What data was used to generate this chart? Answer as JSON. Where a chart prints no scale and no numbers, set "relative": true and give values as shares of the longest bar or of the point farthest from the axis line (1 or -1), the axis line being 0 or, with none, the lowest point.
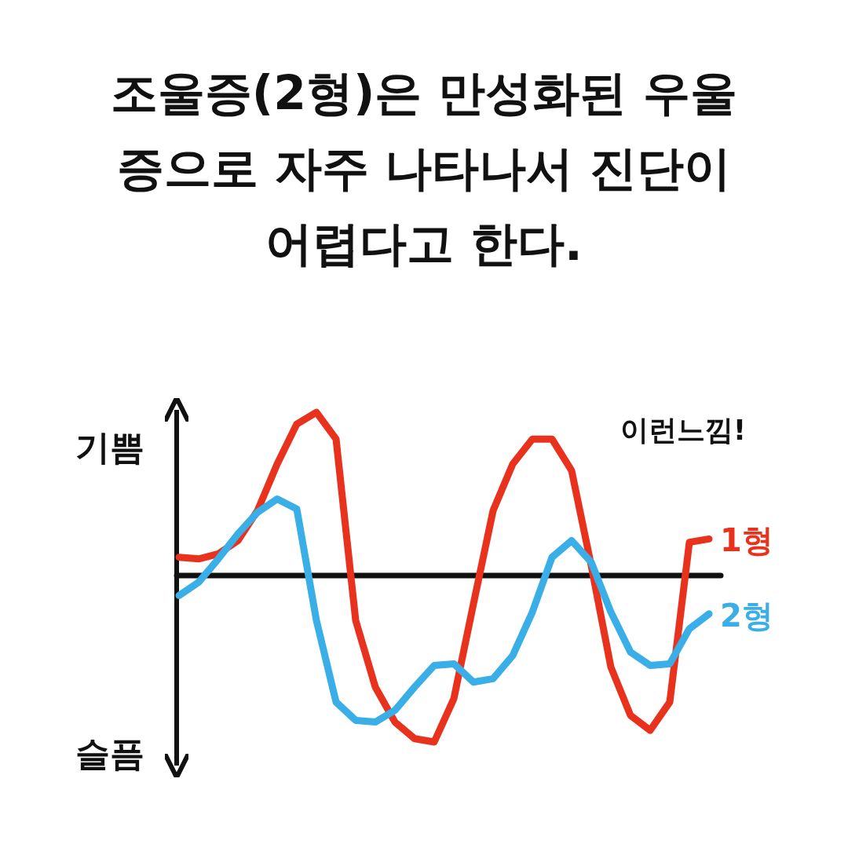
{
  "chart_data": {
    "type": "line",
    "title": "조울증(2형)은 만성화된 우울증으로 자주 나타나서 진단이 어렵다고 한다.",
    "relative": true,
    "categories": [
      null,
      null,
      null,
      null,
      null,
      null,
      null,
      null,
      null,
      null,
      null,
      null,
      null,
      null,
      null,
      null,
      null,
      null,
      null,
      null,
      null,
      null,
      null,
      null,
      null,
      null,
      null,
      null
    ],
    "series": [
      {
        "name": "1형",
        "color": "#e8321e",
        "values": [
          0.11,
          0.1,
          0.13,
          0.21,
          0.39,
          0.67,
          0.91,
          0.98,
          0.82,
          -0.27,
          -0.67,
          -0.88,
          -0.98,
          -1.0,
          -0.74,
          -0.17,
          0.39,
          0.67,
          0.82,
          0.82,
          0.63,
          0.06,
          -0.55,
          -0.84,
          -0.93,
          -0.76,
          0.2,
          0.22
        ]
      },
      {
        "name": "2형",
        "color": "#3aaee6",
        "values": [
          -0.12,
          -0.04,
          0.1,
          0.25,
          0.38,
          0.46,
          0.4,
          -0.27,
          -0.76,
          -0.87,
          -0.88,
          -0.81,
          -0.67,
          -0.54,
          -0.53,
          -0.64,
          -0.62,
          -0.48,
          -0.22,
          0.11,
          0.21,
          0.08,
          -0.22,
          -0.46,
          -0.54,
          -0.53,
          -0.32,
          -0.23
        ]
      }
    ],
    "annotations": [
      "기쁨",
      "슬픔",
      "이런느낌!"
    ]
  }
}
